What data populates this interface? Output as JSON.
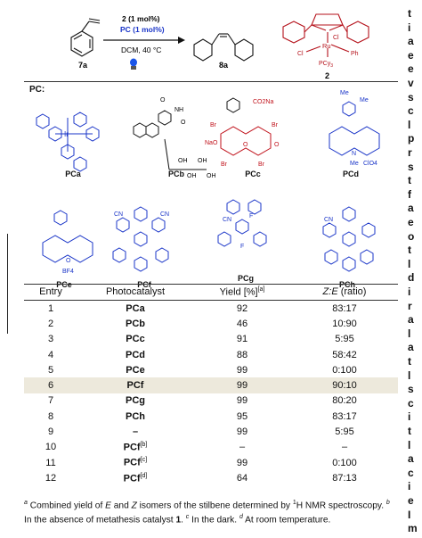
{
  "scheme": {
    "reagent_line1": "2 (1 mol%)",
    "reagent_line2": "PC (1 mol%)",
    "conditions": "DCM, 40 °C",
    "substrate_label": "7a",
    "product_label": "8a",
    "catalyst_label": "2",
    "catalyst_atoms": [
      "Cl",
      "Ru",
      "Cl",
      "Ph",
      "PCy",
      "3"
    ]
  },
  "pc_section": {
    "title": "PC:",
    "catalysts": [
      {
        "label": "PCa"
      },
      {
        "label": "PCb"
      },
      {
        "label": "PCc"
      },
      {
        "label": "PCd"
      },
      {
        "label": "PCe"
      },
      {
        "label": "PCf"
      },
      {
        "label": "PCg"
      },
      {
        "label": "PCh"
      }
    ],
    "atom_labels": {
      "pcb": [
        "O",
        "NH",
        "N",
        "N",
        "O",
        "OH",
        "OH",
        "OH",
        "OH"
      ],
      "pcc": [
        "CO2Na",
        "Br",
        "Br",
        "NaO",
        "O",
        "O",
        "Br",
        "Br"
      ],
      "pcd": [
        "Me",
        "Me",
        "N",
        "Me",
        "ClO4"
      ],
      "pce": [
        "O",
        "BF4"
      ],
      "pcf": [
        "CN",
        "CN",
        "N",
        "N",
        "N",
        "N"
      ],
      "pcg": [
        "F",
        "CN",
        "N",
        "N",
        "F"
      ],
      "pch": [
        "CN",
        "N",
        "N",
        "N",
        "N"
      ]
    }
  },
  "table": {
    "headers": {
      "entry": "Entry",
      "pc": "Photocatalyst",
      "yield": "Yield [%]",
      "yield_sup": "[a]",
      "ratio_italic": "Z:E",
      "ratio_rest": " (ratio)"
    },
    "rows": [
      {
        "entry": "1",
        "pc": "PCa",
        "pc_sup": "",
        "yield": "92",
        "ratio": "83:17"
      },
      {
        "entry": "2",
        "pc": "PCb",
        "pc_sup": "",
        "yield": "46",
        "ratio": "10:90"
      },
      {
        "entry": "3",
        "pc": "PCc",
        "pc_sup": "",
        "yield": "91",
        "ratio": "5:95"
      },
      {
        "entry": "4",
        "pc": "PCd",
        "pc_sup": "",
        "yield": "88",
        "ratio": "58:42"
      },
      {
        "entry": "5",
        "pc": "PCe",
        "pc_sup": "",
        "yield": "99",
        "ratio": "0:100"
      },
      {
        "entry": "6",
        "pc": "PCf",
        "pc_sup": "",
        "yield": "99",
        "ratio": "90:10"
      },
      {
        "entry": "7",
        "pc": "PCg",
        "pc_sup": "",
        "yield": "99",
        "ratio": "80:20"
      },
      {
        "entry": "8",
        "pc": "PCh",
        "pc_sup": "",
        "yield": "95",
        "ratio": "83:17"
      },
      {
        "entry": "9",
        "pc": "–",
        "pc_sup": "",
        "yield": "99",
        "ratio": "5:95"
      },
      {
        "entry": "10",
        "pc": "PCf",
        "pc_sup": "[b]",
        "yield": "–",
        "ratio": "–"
      },
      {
        "entry": "11",
        "pc": "PCf",
        "pc_sup": "[c]",
        "yield": "99",
        "ratio": "0:100"
      },
      {
        "entry": "12",
        "pc": "PCf",
        "pc_sup": "[d]",
        "yield": "64",
        "ratio": "87:13"
      }
    ],
    "highlighted_row": 6
  },
  "footnote": {
    "a_mark": "a",
    "a_text": " Combined yield of ",
    "e": "E",
    "and": " and ",
    "z": "Z",
    "a_text2": " isomers of the stilbene determined by ",
    "h_mark": "1",
    "a_text3": "H NMR spectroscopy. ",
    "b_mark": "b",
    "b_text": " In the absence of metathesis catalyst ",
    "b_bold": "1",
    "b_end": ". ",
    "c_mark": "c",
    "c_text": " In the dark. ",
    "d_mark": "d",
    "d_text": " At room temperature."
  },
  "colors": {
    "blue": "#1a35c8",
    "red": "#b5121b",
    "highlight": "#ede9dc"
  },
  "right_edge_glyphs": [
    "t",
    "i",
    "a",
    "e",
    "e",
    "v",
    "s",
    "c",
    "l",
    "p",
    "r",
    "s",
    "t",
    "f",
    "a",
    "e",
    "o",
    "t",
    "l",
    "d",
    "i",
    "r",
    "a",
    "l",
    "a",
    "t",
    "l",
    "s",
    "c",
    "i",
    "t",
    "l",
    "a",
    "c",
    "i",
    "e",
    "I",
    "m"
  ]
}
